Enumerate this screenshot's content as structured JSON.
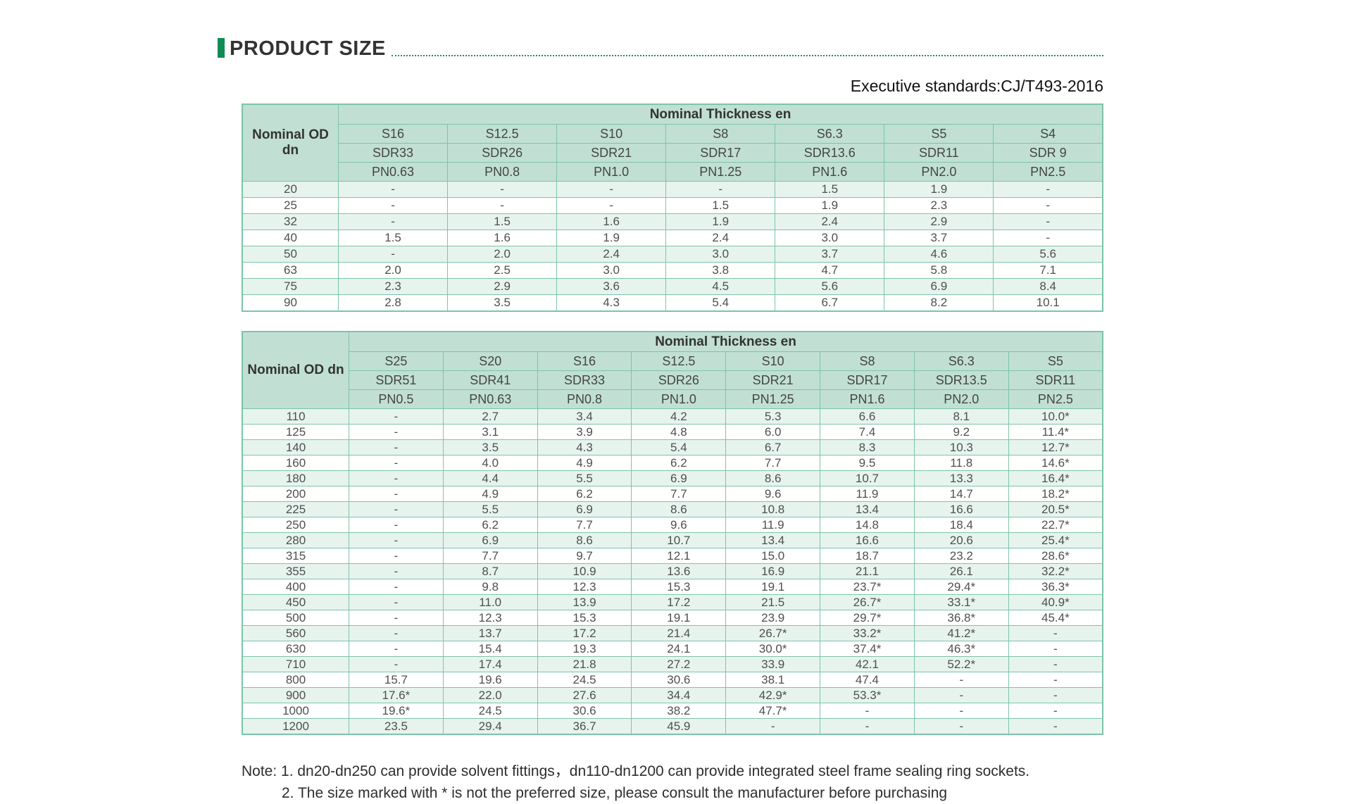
{
  "page": {
    "title": "PRODUCT SIZE",
    "standard": "Executive standards:CJ/T493-2016",
    "notes": [
      "Note: 1. dn20-dn250 can provide solvent fittings，dn110-dn1200 can provide integrated steel frame sealing ring sockets.",
      "2. The size marked with * is not the preferred size, please consult the manufacturer before purchasing"
    ]
  },
  "colors": {
    "accent_green": "#0e8c50",
    "dotted_line_green": "#1f8f58",
    "table_border_green": "#7cc4a9",
    "header_bg_green": "#c1e0d3",
    "row_stripe_green": "#e7f4ee"
  },
  "tables": [
    {
      "row_header": "Nominal OD dn",
      "group_header": "Nominal Thickness en",
      "columns": [
        {
          "s": "S16",
          "sdr": "SDR33",
          "pn": "PN0.63"
        },
        {
          "s": "S12.5",
          "sdr": "SDR26",
          "pn": "PN0.8"
        },
        {
          "s": "S10",
          "sdr": "SDR21",
          "pn": "PN1.0"
        },
        {
          "s": "S8",
          "sdr": "SDR17",
          "pn": "PN1.25"
        },
        {
          "s": "S6.3",
          "sdr": "SDR13.6",
          "pn": "PN1.6"
        },
        {
          "s": "S5",
          "sdr": "SDR11",
          "pn": "PN2.0"
        },
        {
          "s": "S4",
          "sdr": "SDR 9",
          "pn": "PN2.5"
        }
      ],
      "rows": [
        {
          "dn": "20",
          "values": [
            "-",
            "-",
            "-",
            "-",
            "1.5",
            "1.9",
            "-"
          ]
        },
        {
          "dn": "25",
          "values": [
            "-",
            "-",
            "-",
            "1.5",
            "1.9",
            "2.3",
            "-"
          ]
        },
        {
          "dn": "32",
          "values": [
            "-",
            "1.5",
            "1.6",
            "1.9",
            "2.4",
            "2.9",
            "-"
          ]
        },
        {
          "dn": "40",
          "values": [
            "1.5",
            "1.6",
            "1.9",
            "2.4",
            "3.0",
            "3.7",
            "-"
          ]
        },
        {
          "dn": "50",
          "values": [
            "-",
            "2.0",
            "2.4",
            "3.0",
            "3.7",
            "4.6",
            "5.6"
          ]
        },
        {
          "dn": "63",
          "values": [
            "2.0",
            "2.5",
            "3.0",
            "3.8",
            "4.7",
            "5.8",
            "7.1"
          ]
        },
        {
          "dn": "75",
          "values": [
            "2.3",
            "2.9",
            "3.6",
            "4.5",
            "5.6",
            "6.9",
            "8.4"
          ]
        },
        {
          "dn": "90",
          "values": [
            "2.8",
            "3.5",
            "4.3",
            "5.4",
            "6.7",
            "8.2",
            "10.1"
          ]
        }
      ]
    },
    {
      "row_header": "Nominal OD dn",
      "group_header": "Nominal Thickness en",
      "columns": [
        {
          "s": "S25",
          "sdr": "SDR51",
          "pn": "PN0.5"
        },
        {
          "s": "S20",
          "sdr": "SDR41",
          "pn": "PN0.63"
        },
        {
          "s": "S16",
          "sdr": "SDR33",
          "pn": "PN0.8"
        },
        {
          "s": "S12.5",
          "sdr": "SDR26",
          "pn": "PN1.0"
        },
        {
          "s": "S10",
          "sdr": "SDR21",
          "pn": "PN1.25"
        },
        {
          "s": "S8",
          "sdr": "SDR17",
          "pn": "PN1.6"
        },
        {
          "s": "S6.3",
          "sdr": "SDR13.5",
          "pn": "PN2.0"
        },
        {
          "s": "S5",
          "sdr": "SDR11",
          "pn": "PN2.5"
        }
      ],
      "rows": [
        {
          "dn": "110",
          "values": [
            "-",
            "2.7",
            "3.4",
            "4.2",
            "5.3",
            "6.6",
            "8.1",
            "10.0*"
          ]
        },
        {
          "dn": "125",
          "values": [
            "-",
            "3.1",
            "3.9",
            "4.8",
            "6.0",
            "7.4",
            "9.2",
            "11.4*"
          ]
        },
        {
          "dn": "140",
          "values": [
            "-",
            "3.5",
            "4.3",
            "5.4",
            "6.7",
            "8.3",
            "10.3",
            "12.7*"
          ]
        },
        {
          "dn": "160",
          "values": [
            "-",
            "4.0",
            "4.9",
            "6.2",
            "7.7",
            "9.5",
            "11.8",
            "14.6*"
          ]
        },
        {
          "dn": "180",
          "values": [
            "-",
            "4.4",
            "5.5",
            "6.9",
            "8.6",
            "10.7",
            "13.3",
            "16.4*"
          ]
        },
        {
          "dn": "200",
          "values": [
            "-",
            "4.9",
            "6.2",
            "7.7",
            "9.6",
            "11.9",
            "14.7",
            "18.2*"
          ]
        },
        {
          "dn": "225",
          "values": [
            "-",
            "5.5",
            "6.9",
            "8.6",
            "10.8",
            "13.4",
            "16.6",
            "20.5*"
          ]
        },
        {
          "dn": "250",
          "values": [
            "-",
            "6.2",
            "7.7",
            "9.6",
            "11.9",
            "14.8",
            "18.4",
            "22.7*"
          ]
        },
        {
          "dn": "280",
          "values": [
            "-",
            "6.9",
            "8.6",
            "10.7",
            "13.4",
            "16.6",
            "20.6",
            "25.4*"
          ]
        },
        {
          "dn": "315",
          "values": [
            "-",
            "7.7",
            "9.7",
            "12.1",
            "15.0",
            "18.7",
            "23.2",
            "28.6*"
          ]
        },
        {
          "dn": "355",
          "values": [
            "-",
            "8.7",
            "10.9",
            "13.6",
            "16.9",
            "21.1",
            "26.1",
            "32.2*"
          ]
        },
        {
          "dn": "400",
          "values": [
            "-",
            "9.8",
            "12.3",
            "15.3",
            "19.1",
            "23.7*",
            "29.4*",
            "36.3*"
          ]
        },
        {
          "dn": "450",
          "values": [
            "-",
            "11.0",
            "13.9",
            "17.2",
            "21.5",
            "26.7*",
            "33.1*",
            "40.9*"
          ]
        },
        {
          "dn": "500",
          "values": [
            "-",
            "12.3",
            "15.3",
            "19.1",
            "23.9",
            "29.7*",
            "36.8*",
            "45.4*"
          ]
        },
        {
          "dn": "560",
          "values": [
            "-",
            "13.7",
            "17.2",
            "21.4",
            "26.7*",
            "33.2*",
            "41.2*",
            "-"
          ]
        },
        {
          "dn": "630",
          "values": [
            "-",
            "15.4",
            "19.3",
            "24.1",
            "30.0*",
            "37.4*",
            "46.3*",
            "-"
          ]
        },
        {
          "dn": "710",
          "values": [
            "-",
            "17.4",
            "21.8",
            "27.2",
            "33.9",
            "42.1",
            "52.2*",
            "-"
          ]
        },
        {
          "dn": "800",
          "values": [
            "15.7",
            "19.6",
            "24.5",
            "30.6",
            "38.1",
            "47.4",
            "-",
            "-"
          ]
        },
        {
          "dn": "900",
          "values": [
            "17.6*",
            "22.0",
            "27.6",
            "34.4",
            "42.9*",
            "53.3*",
            "-",
            "-"
          ]
        },
        {
          "dn": "1000",
          "values": [
            "19.6*",
            "24.5",
            "30.6",
            "38.2",
            "47.7*",
            "-",
            "-",
            "-"
          ]
        },
        {
          "dn": "1200",
          "values": [
            "23.5",
            "29.4",
            "36.7",
            "45.9",
            "-",
            "-",
            "-",
            "-"
          ]
        }
      ]
    }
  ]
}
